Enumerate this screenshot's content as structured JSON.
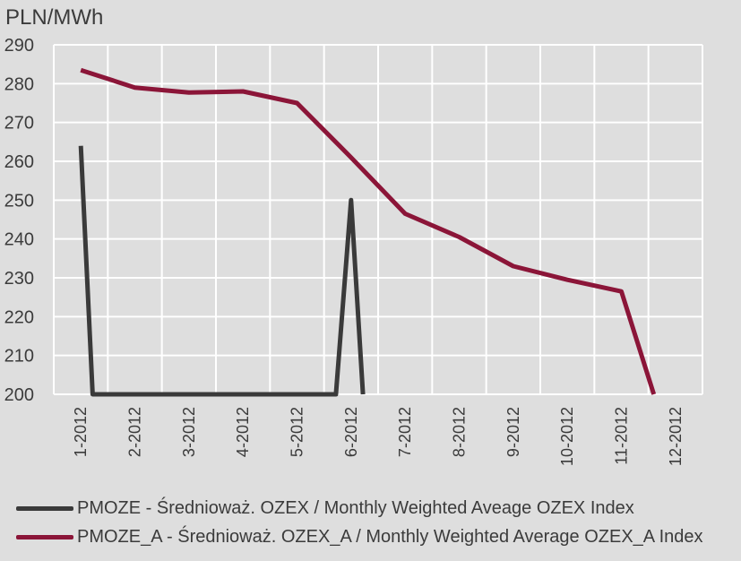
{
  "chart_data": {
    "type": "line",
    "title": "",
    "ylabel": "PLN/MWh",
    "xlabel": "",
    "categories": [
      "1-2012",
      "2-2012",
      "3-2012",
      "4-2012",
      "5-2012",
      "6-2012",
      "7-2012",
      "8-2012",
      "9-2012",
      "10-2012",
      "11-2012",
      "12-2012"
    ],
    "ylim": [
      200,
      290
    ],
    "yticks": [
      200,
      210,
      220,
      230,
      240,
      250,
      260,
      270,
      280,
      290
    ],
    "grid": true,
    "legend_position": "bottom",
    "series": [
      {
        "name": "PMOZE - Średnioważ. OZEX / Monthly Weighted Aveage OZEX Index",
        "color": "#3a3a3a",
        "points": [
          [
            0,
            264
          ],
          [
            0.22,
            200
          ],
          [
            4.72,
            200
          ],
          [
            5.0,
            250
          ],
          [
            5.22,
            200
          ]
        ]
      },
      {
        "name": "PMOZE_A - Średnioważ. OZEX_A / Monthly Weighted Average OZEX_A Index",
        "color": "#8b1538",
        "points": [
          [
            0,
            283.5
          ],
          [
            1,
            279
          ],
          [
            2,
            277.7
          ],
          [
            3,
            278
          ],
          [
            4,
            275
          ],
          [
            5,
            261
          ],
          [
            6,
            246.5
          ],
          [
            7,
            240.5
          ],
          [
            8,
            233
          ],
          [
            9,
            229.5
          ],
          [
            10,
            226.5
          ],
          [
            10.6,
            200
          ]
        ]
      }
    ]
  }
}
